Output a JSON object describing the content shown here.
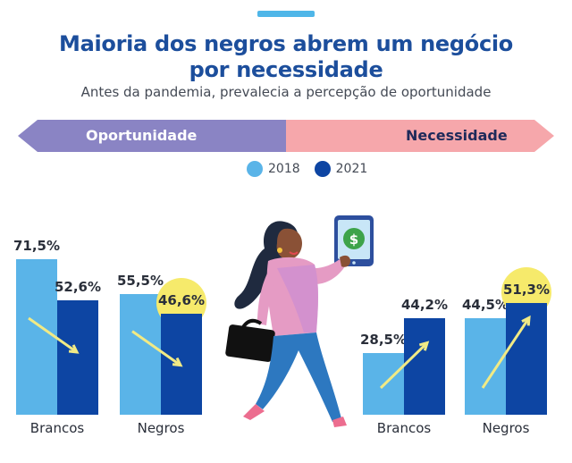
{
  "header": {
    "title_line1": "Maioria dos negros abrem um negócio",
    "title_line2": "por necessidade",
    "subtitle": "Antes da pandemia, prevalecia a percepção de oportunidade"
  },
  "band": {
    "left_label": "Oportunidade",
    "right_label": "Necessidade",
    "left_color": "#8a84c4",
    "right_color": "#f6a7ab"
  },
  "legend": [
    {
      "label": "2018",
      "color": "#5ab4e8"
    },
    {
      "label": "2021",
      "color": "#0d45a3"
    }
  ],
  "chart_data": [
    {
      "type": "bar",
      "group": "Oportunidade",
      "categories": [
        "Brancos",
        "Negros"
      ],
      "series": [
        {
          "name": "2018",
          "values": [
            71.5,
            55.5
          ],
          "labels": [
            "71,5%",
            "55,5%"
          ]
        },
        {
          "name": "2021",
          "values": [
            52.6,
            46.6
          ],
          "labels": [
            "52,6%",
            "46,6%"
          ]
        }
      ],
      "ylim": [
        0,
        71.5
      ],
      "highlight": {
        "category": "Negros",
        "series": "2021"
      }
    },
    {
      "type": "bar",
      "group": "Necessidade",
      "categories": [
        "Brancos",
        "Negros"
      ],
      "series": [
        {
          "name": "2018",
          "values": [
            28.5,
            44.5
          ],
          "labels": [
            "28,5%",
            "44,5%"
          ]
        },
        {
          "name": "2021",
          "values": [
            44.2,
            51.3
          ],
          "labels": [
            "44,2%",
            "51,3%"
          ]
        }
      ],
      "ylim": [
        0,
        71.5
      ],
      "highlight": {
        "category": "Negros",
        "series": "2021"
      }
    }
  ],
  "illustration": {
    "icon": "woman-with-briefcase-and-tablet-illustration"
  }
}
